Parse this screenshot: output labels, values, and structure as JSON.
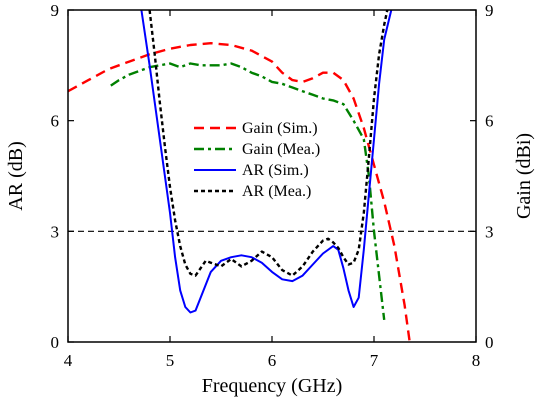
{
  "chart_data": {
    "type": "line",
    "xlabel": "Frequency (GHz)",
    "ylabel": "AR (dB)",
    "y2label": "Gain (dBi)",
    "xlim": [
      4,
      8
    ],
    "ylim": [
      0,
      9
    ],
    "y2lim": [
      0,
      9
    ],
    "x_ticks": [
      "4",
      "5",
      "6",
      "7",
      "8"
    ],
    "y_ticks": [
      "0",
      "3",
      "6",
      "9"
    ],
    "y2_ticks": [
      "0",
      "3",
      "6",
      "9"
    ],
    "grid": false,
    "legend_placement": "center",
    "reference_line": {
      "y": 3,
      "style": "dashed",
      "color": "#000000"
    },
    "series": [
      {
        "name": "Gain (Sim.)",
        "axis": "right",
        "color": "#ff0000",
        "style": "dashed",
        "x": [
          4.0,
          4.2,
          4.4,
          4.6,
          4.8,
          5.0,
          5.2,
          5.4,
          5.6,
          5.8,
          6.0,
          6.1,
          6.2,
          6.3,
          6.4,
          6.5,
          6.6,
          6.7,
          6.8,
          6.9,
          7.0,
          7.1,
          7.2,
          7.3,
          7.35
        ],
        "y": [
          6.8,
          7.1,
          7.4,
          7.6,
          7.8,
          7.95,
          8.05,
          8.1,
          8.05,
          7.9,
          7.6,
          7.3,
          7.1,
          7.05,
          7.15,
          7.3,
          7.3,
          7.1,
          6.6,
          5.8,
          4.8,
          3.8,
          2.6,
          1.0,
          0.0
        ]
      },
      {
        "name": "Gain (Mea.)",
        "axis": "right",
        "color": "#008000",
        "style": "dashdot",
        "x": [
          4.42,
          4.5,
          4.6,
          4.7,
          4.8,
          4.9,
          5.0,
          5.1,
          5.2,
          5.3,
          5.4,
          5.5,
          5.6,
          5.7,
          5.8,
          5.9,
          6.0,
          6.1,
          6.2,
          6.3,
          6.4,
          6.5,
          6.6,
          6.7,
          6.8,
          6.9,
          6.95,
          7.0,
          7.05,
          7.1
        ],
        "y": [
          6.95,
          7.1,
          7.25,
          7.35,
          7.45,
          7.5,
          7.55,
          7.45,
          7.55,
          7.5,
          7.5,
          7.5,
          7.55,
          7.45,
          7.3,
          7.2,
          7.05,
          7.0,
          6.9,
          6.8,
          6.7,
          6.6,
          6.55,
          6.45,
          6.0,
          5.5,
          4.5,
          3.0,
          1.8,
          0.6
        ]
      },
      {
        "name": "AR (Sim.)",
        "axis": "left",
        "color": "#0000ff",
        "style": "solid",
        "x": [
          4.72,
          4.8,
          4.9,
          5.0,
          5.05,
          5.1,
          5.15,
          5.2,
          5.25,
          5.3,
          5.4,
          5.5,
          5.6,
          5.7,
          5.8,
          5.9,
          6.0,
          6.1,
          6.2,
          6.3,
          6.4,
          6.5,
          6.6,
          6.65,
          6.7,
          6.75,
          6.8,
          6.85,
          6.9,
          6.95,
          7.0,
          7.05,
          7.1,
          7.17
        ],
        "y": [
          9.0,
          7.5,
          5.5,
          3.5,
          2.3,
          1.4,
          0.95,
          0.8,
          0.85,
          1.2,
          1.9,
          2.2,
          2.3,
          2.35,
          2.3,
          2.15,
          1.9,
          1.7,
          1.65,
          1.8,
          2.1,
          2.4,
          2.6,
          2.5,
          2.0,
          1.4,
          0.95,
          1.2,
          2.5,
          4.0,
          5.5,
          7.0,
          8.2,
          9.0
        ]
      },
      {
        "name": "AR (Mea.)",
        "axis": "left",
        "color": "#000000",
        "style": "dotted",
        "x": [
          4.8,
          4.85,
          4.9,
          4.95,
          5.0,
          5.05,
          5.1,
          5.15,
          5.2,
          5.25,
          5.3,
          5.35,
          5.4,
          5.5,
          5.6,
          5.7,
          5.8,
          5.9,
          6.0,
          6.1,
          6.2,
          6.3,
          6.4,
          6.5,
          6.55,
          6.6,
          6.65,
          6.7,
          6.75,
          6.8,
          6.85,
          6.9,
          6.95,
          7.0,
          7.05,
          7.1,
          7.13
        ],
        "y": [
          9.0,
          7.8,
          6.5,
          5.3,
          4.2,
          3.3,
          2.6,
          2.1,
          1.85,
          1.8,
          2.0,
          2.2,
          2.15,
          2.05,
          2.25,
          2.05,
          2.2,
          2.45,
          2.3,
          1.95,
          1.8,
          2.05,
          2.45,
          2.75,
          2.8,
          2.7,
          2.55,
          2.3,
          2.1,
          2.15,
          2.5,
          3.5,
          5.0,
          6.6,
          7.8,
          8.6,
          9.0
        ]
      }
    ]
  }
}
